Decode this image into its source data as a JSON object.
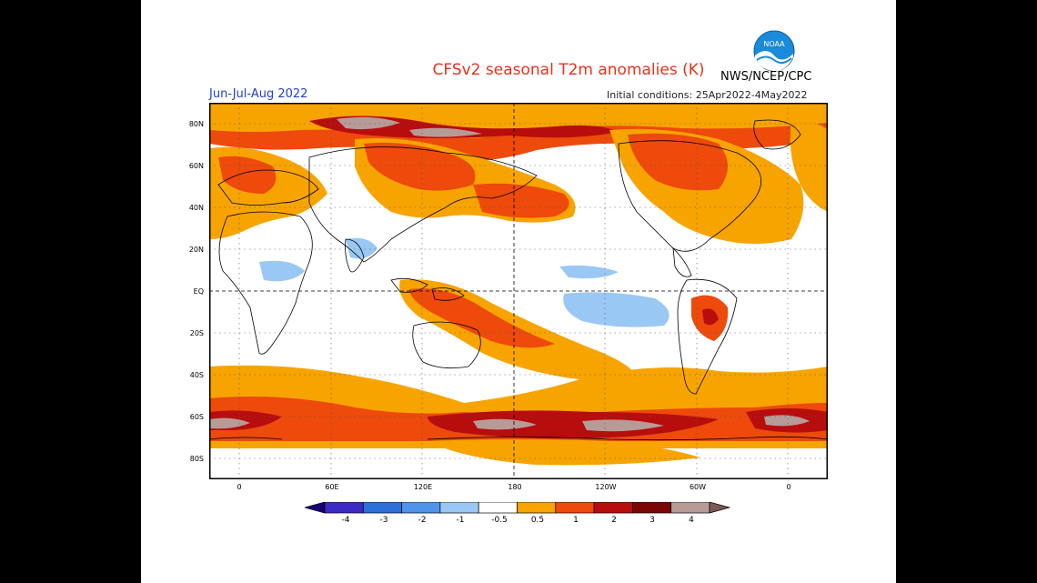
{
  "figure": {
    "title": "CFSv2 seasonal T2m anomalies (K)",
    "season": "Jun-Jul-Aug 2022",
    "initial_conditions": "Initial conditions: 25Apr2022-4May2022",
    "agency": "NWS/NCEP/CPC",
    "logo_text": "NOAA"
  },
  "map": {
    "lat_labels": [
      "80N",
      "60N",
      "40N",
      "20N",
      "EQ",
      "20S",
      "40S",
      "60S",
      "80S"
    ],
    "lon_labels": [
      "0",
      "60E",
      "120E",
      "180",
      "120W",
      "60W",
      "0"
    ]
  },
  "colorbar": {
    "ticks": [
      "-4",
      "-3",
      "-2",
      "-1",
      "-0.5",
      "0.5",
      "1",
      "2",
      "3",
      "4"
    ],
    "colors": [
      "#1a0078",
      "#3b2ac4",
      "#2f6fd8",
      "#4f94e8",
      "#9ac8f4",
      "#ffffff",
      "#f7a400",
      "#ed4a0c",
      "#b80d0d",
      "#7a0606",
      "#b79b97",
      "#7a5a58"
    ]
  }
}
